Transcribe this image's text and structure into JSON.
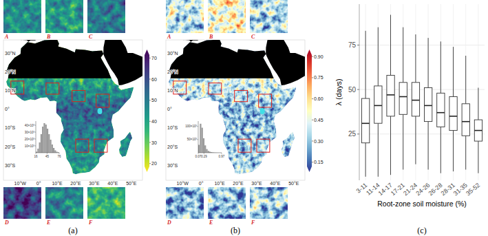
{
  "chart_data": [
    {
      "type": "map",
      "panel_label": "(a)",
      "xlim": [
        -19,
        56
      ],
      "ylim": [
        -38,
        37
      ],
      "xticks": [
        {
          "value": -10,
          "label": "10°W"
        },
        {
          "value": 0,
          "label": "0°"
        },
        {
          "value": 10,
          "label": "10°E"
        },
        {
          "value": 20,
          "label": "20°E"
        },
        {
          "value": 30,
          "label": "30°E"
        },
        {
          "value": 40,
          "label": "40°E"
        },
        {
          "value": 50,
          "label": "50°E"
        }
      ],
      "yticks": [
        {
          "value": 30,
          "label": "30°N"
        },
        {
          "value": 20,
          "label": "20°N"
        },
        {
          "value": 10,
          "label": "10°N"
        },
        {
          "value": 0,
          "label": "0°"
        },
        {
          "value": -10,
          "label": "10°S"
        },
        {
          "value": -20,
          "label": "20°S"
        },
        {
          "value": -30,
          "label": "30°S"
        }
      ],
      "regions": [
        {
          "label": "A",
          "lon": [
            -15,
            -8
          ],
          "lat": [
            8,
            15
          ]
        },
        {
          "label": "B",
          "lon": [
            4,
            11
          ],
          "lat": [
            8,
            14
          ]
        },
        {
          "label": "C",
          "lon": [
            18,
            25
          ],
          "lat": [
            4,
            10
          ]
        },
        {
          "label": "D",
          "lon": [
            20,
            27
          ],
          "lat": [
            -23,
            -16
          ]
        },
        {
          "label": "E",
          "lon": [
            30,
            37
          ],
          "lat": [
            -23,
            -16
          ]
        },
        {
          "label": "F",
          "lon": [
            31,
            38
          ],
          "lat": [
            1,
            8
          ]
        }
      ],
      "colorbar": {
        "range": [
          16,
          74
        ],
        "ticks": [
          20,
          30,
          40,
          50,
          60,
          70
        ]
      },
      "histogram": {
        "type": "histogram",
        "bins": [
          16,
          20,
          24,
          28,
          32,
          36,
          40,
          44,
          48,
          52,
          56,
          60,
          64,
          68,
          72,
          76
        ],
        "counts": [
          1500,
          6000,
          15000,
          27000,
          38000,
          43000,
          41000,
          35000,
          27000,
          19000,
          12000,
          7000,
          3500,
          1500,
          600
        ],
        "xlim": [
          16,
          76
        ],
        "ylim": [
          0,
          46000
        ],
        "xticks": [
          16,
          45,
          76
        ],
        "yticks": [
          {
            "value": 10000,
            "label": "10×10³"
          },
          {
            "value": 20000,
            "label": "20×10³"
          },
          {
            "value": 30000,
            "label": "30×10³"
          },
          {
            "value": 40000,
            "label": "40×10³"
          }
        ]
      }
    },
    {
      "type": "map",
      "panel_label": "(b)",
      "xlim": [
        -19,
        56
      ],
      "ylim": [
        -38,
        37
      ],
      "xticks": [
        {
          "value": -10,
          "label": "10°W"
        },
        {
          "value": 0,
          "label": "0°"
        },
        {
          "value": 10,
          "label": "10°E"
        },
        {
          "value": 20,
          "label": "20°E"
        },
        {
          "value": 30,
          "label": "30°E"
        },
        {
          "value": 40,
          "label": "40°E"
        },
        {
          "value": 50,
          "label": "50°E"
        }
      ],
      "yticks": [
        {
          "value": 30,
          "label": "30°N"
        },
        {
          "value": 20,
          "label": "20°N"
        },
        {
          "value": 10,
          "label": "10°N"
        },
        {
          "value": 0,
          "label": "0°"
        },
        {
          "value": -10,
          "label": "10°S"
        },
        {
          "value": -20,
          "label": "20°S"
        },
        {
          "value": -30,
          "label": "30°S"
        }
      ],
      "regions": [
        {
          "label": "A",
          "lon": [
            -15,
            -8
          ],
          "lat": [
            8,
            15
          ]
        },
        {
          "label": "B",
          "lon": [
            4,
            11
          ],
          "lat": [
            8,
            14
          ]
        },
        {
          "label": "C",
          "lon": [
            18,
            25
          ],
          "lat": [
            4,
            10
          ]
        },
        {
          "label": "D",
          "lon": [
            20,
            27
          ],
          "lat": [
            -23,
            -16
          ]
        },
        {
          "label": "E",
          "lon": [
            30,
            37
          ],
          "lat": [
            -23,
            -16
          ]
        },
        {
          "label": "F",
          "lon": [
            31,
            38
          ],
          "lat": [
            1,
            8
          ]
        }
      ],
      "colorbar": {
        "range": [
          0.08,
          0.95
        ],
        "ticks": [
          0.15,
          {
            "value": 0.3,
            "label": "0.30"
          },
          0.45,
          {
            "value": 0.6,
            "label": "0.60"
          },
          0.75,
          {
            "value": 0.9,
            "label": "0.90"
          }
        ]
      },
      "histogram": {
        "type": "histogram",
        "bins": [
          0.07,
          0.13,
          0.19,
          0.25,
          0.31,
          0.37,
          0.43,
          0.49,
          0.55,
          0.61,
          0.67,
          0.73,
          0.79,
          0.85,
          0.91,
          0.97
        ],
        "counts": [
          30000,
          110000,
          95000,
          55000,
          28000,
          14000,
          7000,
          4000,
          2500,
          1500,
          900,
          600,
          400,
          250,
          150
        ],
        "xlim": [
          0.07,
          0.97
        ],
        "ylim": [
          0,
          120000
        ],
        "xticks": [
          0.07,
          0.29,
          0.97
        ],
        "yticks": [
          {
            "value": 50000,
            "label": "50×10³"
          },
          {
            "value": 100000,
            "label": "100×10³"
          }
        ]
      }
    },
    {
      "type": "box",
      "panel_label": "(c)",
      "x_label": "Root-zone soil moisture (%)",
      "y_label": "λ (days)",
      "categories": [
        "3-11",
        "11-14",
        "14-17",
        "17-21",
        "21-24",
        "24-26",
        "26-28",
        "28-31",
        "31-35",
        "35-52"
      ],
      "min": [
        1,
        1,
        2,
        5,
        8,
        5,
        3,
        4,
        5,
        3
      ],
      "q1": [
        20,
        31,
        35,
        36,
        35,
        32,
        29,
        27,
        24,
        21
      ],
      "median": [
        31,
        41,
        47,
        46,
        44,
        41,
        37,
        35,
        32,
        27
      ],
      "q3": [
        45,
        52,
        58,
        54,
        54,
        51,
        48,
        46,
        42,
        33
      ],
      "max": [
        83,
        85,
        92,
        85,
        81,
        79,
        77,
        74,
        69,
        51
      ],
      "ylim": [
        -1,
        98
      ],
      "yticks": [
        25,
        50,
        75
      ],
      "grid": true
    }
  ]
}
